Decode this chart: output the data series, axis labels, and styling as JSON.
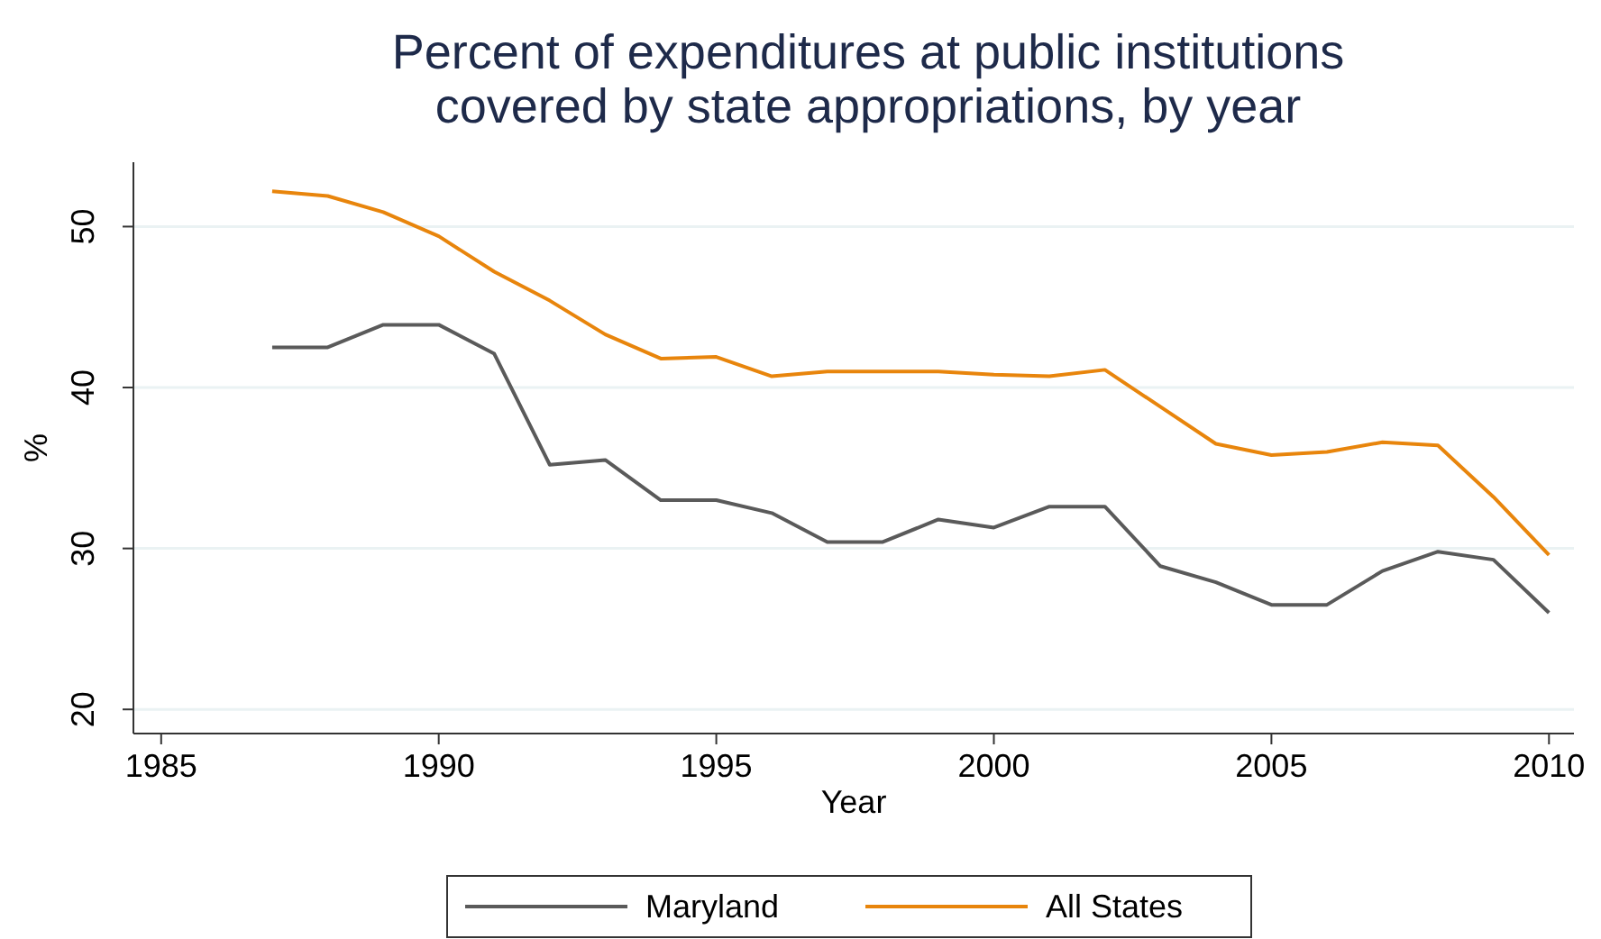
{
  "chart_data": {
    "type": "line",
    "title": "Percent of expenditures at public institutions covered by state appropriations, by year",
    "xlabel": "Year",
    "ylabel": "%",
    "x": [
      1987,
      1988,
      1989,
      1990,
      1991,
      1992,
      1993,
      1994,
      1995,
      1996,
      1997,
      1998,
      1999,
      2000,
      2001,
      2002,
      2003,
      2004,
      2005,
      2006,
      2007,
      2008,
      2009,
      2010
    ],
    "series": [
      {
        "name": "Maryland",
        "color": "#5a5a5a",
        "values": [
          42.5,
          42.5,
          43.9,
          43.9,
          42.1,
          35.2,
          35.5,
          33,
          33,
          32.2,
          30.4,
          30.4,
          31.8,
          31.3,
          32.6,
          32.6,
          28.9,
          27.9,
          26.5,
          26.5,
          28.6,
          29.8,
          29.3,
          26.0
        ]
      },
      {
        "name": "All States",
        "color": "#e8850c",
        "values": [
          52.2,
          51.9,
          50.9,
          49.4,
          47.2,
          45.4,
          43.3,
          41.8,
          41.9,
          40.7,
          41.0,
          41.0,
          41.0,
          40.8,
          40.7,
          41.1,
          38.8,
          36.5,
          35.8,
          36.0,
          36.6,
          36.4,
          33.2,
          29.6
        ]
      }
    ],
    "xlim": [
      1984.5,
      2010.45
    ],
    "xticks": [
      1985,
      1990,
      1995,
      2000,
      2005,
      2010
    ],
    "ylim": [
      18.5,
      54
    ],
    "yticks": [
      20,
      30,
      40,
      50
    ],
    "grid": "y",
    "legend": "bottom",
    "line_style": "solid",
    "marker": "none"
  }
}
